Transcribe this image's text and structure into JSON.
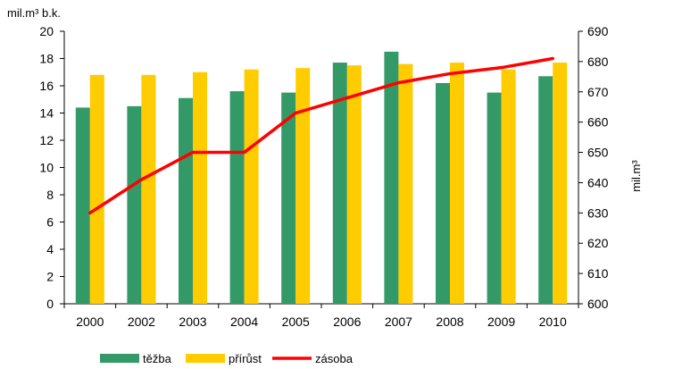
{
  "chart_data": {
    "type": "bar",
    "title": "",
    "categories": [
      "2000",
      "2002",
      "2003",
      "2004",
      "2005",
      "2006",
      "2007",
      "2008",
      "2009",
      "2010"
    ],
    "series": [
      {
        "name": "těžba",
        "type": "bar",
        "axis": "left",
        "color": "#339966",
        "values": [
          14.4,
          14.5,
          15.1,
          15.6,
          15.5,
          17.7,
          18.5,
          16.2,
          15.5,
          16.7
        ]
      },
      {
        "name": "přírůst",
        "type": "bar",
        "axis": "left",
        "color": "#FFCC00",
        "values": [
          16.8,
          16.8,
          17.0,
          17.2,
          17.3,
          17.5,
          17.6,
          17.7,
          17.2,
          17.7
        ]
      },
      {
        "name": "zásoba",
        "type": "line",
        "axis": "right",
        "color": "#FF0000",
        "values": [
          630,
          641,
          650,
          650,
          663,
          668,
          673,
          676,
          678,
          681
        ]
      }
    ],
    "y_left": {
      "label": "mil.m³  b.k.",
      "lim": [
        0,
        20
      ],
      "ticks": [
        0,
        2,
        4,
        6,
        8,
        10,
        12,
        14,
        16,
        18,
        20
      ]
    },
    "y_right": {
      "label": "mil.m³",
      "lim": [
        600,
        690
      ],
      "ticks": [
        600,
        610,
        620,
        630,
        640,
        650,
        660,
        670,
        680,
        690
      ]
    },
    "grid": false,
    "legend_position": "bottom"
  }
}
